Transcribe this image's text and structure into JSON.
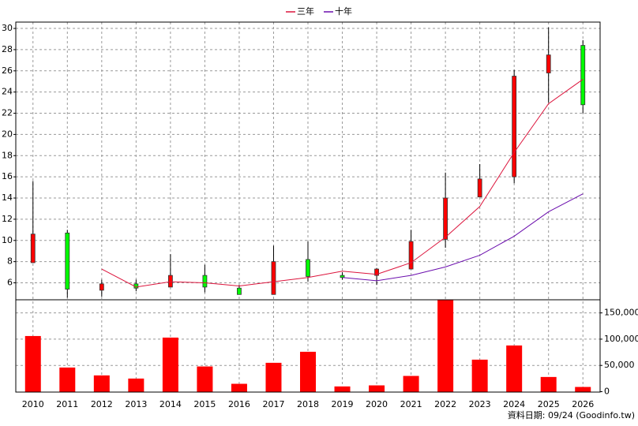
{
  "chart_data": {
    "type": "candlestick",
    "categories": [
      "2010",
      "2011",
      "2012",
      "2013",
      "2014",
      "2015",
      "2016",
      "2017",
      "2018",
      "2019",
      "2020",
      "2021",
      "2022",
      "2023",
      "2024",
      "2025",
      "2026"
    ],
    "open": [
      7.9,
      10.7,
      5.3,
      5.9,
      5.6,
      6.7,
      5.5,
      4.9,
      8.2,
      6.7,
      6.7,
      7.3,
      10.1,
      14.1,
      16.0,
      25.8,
      28.4
    ],
    "high": [
      15.6,
      11.0,
      6.3,
      6.3,
      8.7,
      7.7,
      5.8,
      9.5,
      9.9,
      7.0,
      7.4,
      11.0,
      16.4,
      17.2,
      26.1,
      30.1,
      28.9
    ],
    "low": [
      7.9,
      4.6,
      4.7,
      5.2,
      5.6,
      5.1,
      4.9,
      4.9,
      6.1,
      6.3,
      5.8,
      7.3,
      9.3,
      14.1,
      15.4,
      23.0,
      22.0
    ],
    "close": [
      10.6,
      5.4,
      5.9,
      5.5,
      6.7,
      5.6,
      4.9,
      8.0,
      6.6,
      6.5,
      7.3,
      9.9,
      14.0,
      15.8,
      25.5,
      27.5,
      22.8
    ],
    "up_color": "#ff0000",
    "down_color": "#00ff00",
    "series": [
      {
        "name": "三年",
        "color": "#dc143c",
        "type": "line",
        "values": [
          null,
          null,
          7.3,
          5.6,
          6.1,
          6.0,
          5.7,
          6.1,
          6.5,
          7.1,
          6.8,
          7.9,
          10.3,
          13.2,
          18.3,
          22.9,
          25.2
        ]
      },
      {
        "name": "十年",
        "color": "#6a0dad",
        "type": "line",
        "values": [
          null,
          null,
          null,
          null,
          null,
          null,
          null,
          null,
          null,
          6.5,
          6.2,
          6.7,
          7.5,
          8.6,
          10.4,
          12.7,
          14.4
        ]
      },
      {
        "type": "bar",
        "axis": "y2",
        "color": "#ff0000",
        "values": [
          106000,
          46000,
          31000,
          25000,
          103000,
          48000,
          15000,
          55000,
          76000,
          10000,
          12000,
          30000,
          175000,
          61000,
          88000,
          28000,
          9000
        ]
      }
    ],
    "ylim": [
      4.4,
      30.6
    ],
    "yticks": [
      6,
      8,
      10,
      12,
      14,
      16,
      18,
      20,
      22,
      24,
      26,
      28,
      30
    ],
    "y2lim": [
      0,
      175000
    ],
    "y2ticks": [
      0,
      {
        "value": 50000,
        "label": "50,000"
      },
      {
        "value": 100000,
        "label": "100,000"
      },
      {
        "value": 150000,
        "label": "150,000"
      }
    ],
    "grid": true,
    "source": "資料日期: 09/24  (Goodinfo.tw)"
  }
}
